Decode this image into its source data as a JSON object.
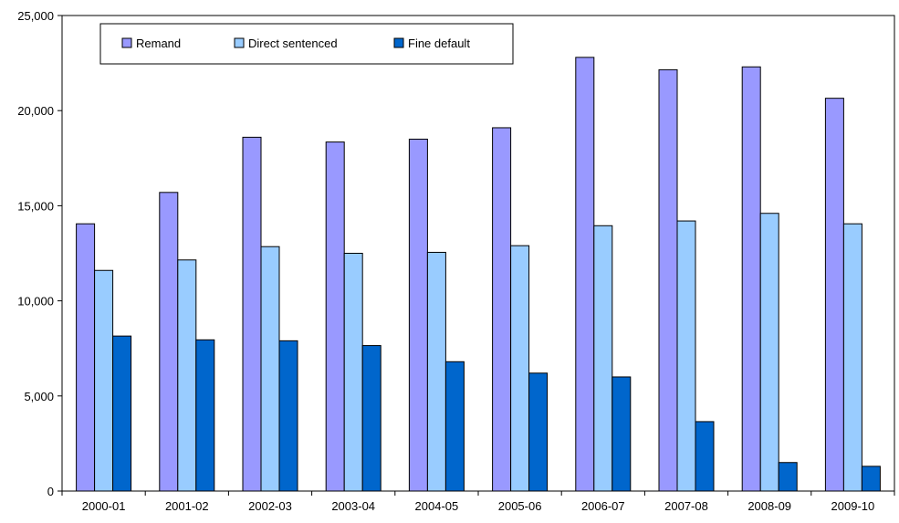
{
  "chart_data": {
    "type": "bar",
    "categories": [
      "2000-01",
      "2001-02",
      "2002-03",
      "2003-04",
      "2004-05",
      "2005-06",
      "2006-07",
      "2007-08",
      "2008-09",
      "2009-10"
    ],
    "series": [
      {
        "name": "Remand",
        "color": "#9999ff",
        "values": [
          14050,
          15700,
          18600,
          18350,
          18500,
          19100,
          22800,
          22150,
          22300,
          20650
        ]
      },
      {
        "name": "Direct sentenced",
        "color": "#99ccff",
        "values": [
          11600,
          12150,
          12850,
          12500,
          12550,
          12900,
          13950,
          14200,
          14600,
          14050
        ]
      },
      {
        "name": "Fine default",
        "color": "#0066cc",
        "values": [
          8150,
          7950,
          7900,
          7650,
          6800,
          6200,
          6000,
          3650,
          1500,
          1300
        ]
      }
    ],
    "ylim": [
      0,
      25000
    ],
    "yticks": [
      "0",
      "5,000",
      "10,000",
      "15,000",
      "20,000",
      "25,000"
    ],
    "grid": false,
    "legend_position": "top-left"
  }
}
